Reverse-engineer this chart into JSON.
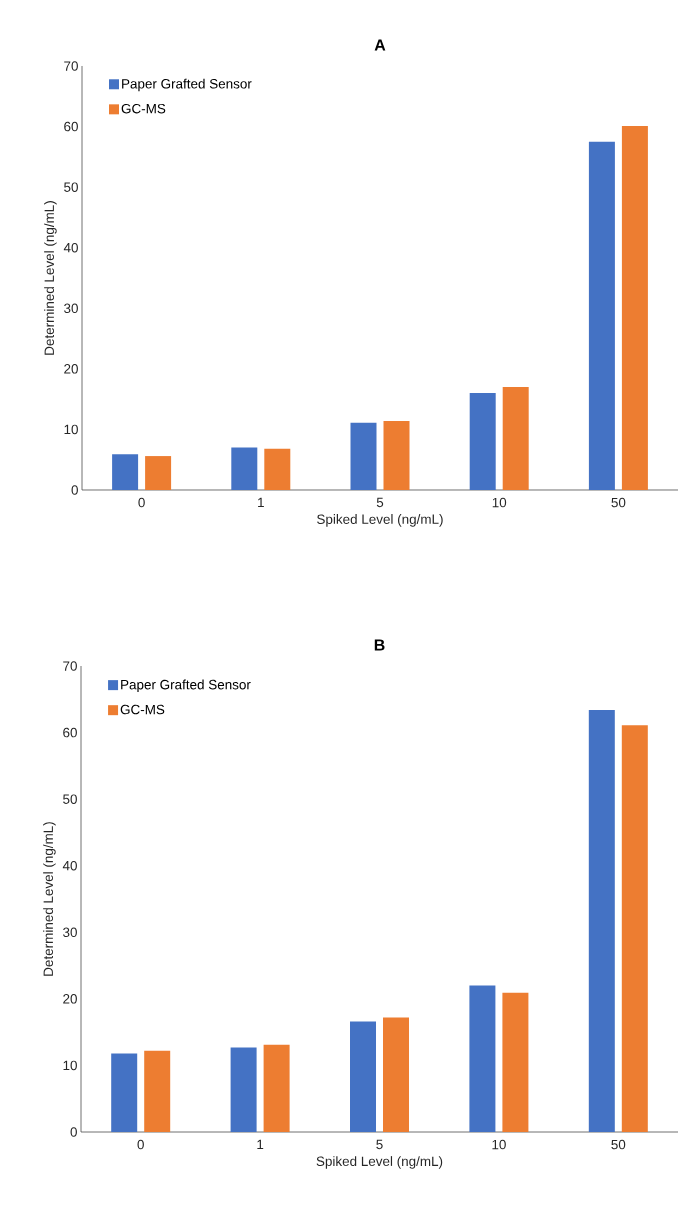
{
  "chart_data": [
    {
      "type": "bar",
      "title": "A",
      "xlabel": "Spiked Level (ng/mL)",
      "ylabel": "Determined Level (ng/mL)",
      "categories": [
        "0",
        "1",
        "5",
        "10",
        "50"
      ],
      "series": [
        {
          "name": "Paper Grafted Sensor",
          "color": "#4472c4",
          "values": [
            5.9,
            7.0,
            11.1,
            16.0,
            57.5
          ]
        },
        {
          "name": "GC-MS",
          "color": "#ed7d31",
          "values": [
            5.6,
            6.8,
            11.4,
            17.0,
            60.1
          ]
        }
      ],
      "ylim": [
        0,
        70
      ],
      "yticks": [
        0,
        10,
        20,
        30,
        40,
        50,
        60,
        70
      ],
      "legend": "top left"
    },
    {
      "type": "bar",
      "title": "B",
      "xlabel": "Spiked Level (ng/mL)",
      "ylabel": "Determined Level (ng/mL)",
      "categories": [
        "0",
        "1",
        "5",
        "10",
        "50"
      ],
      "series": [
        {
          "name": "Paper Grafted Sensor",
          "color": "#4472c4",
          "values": [
            11.8,
            12.7,
            16.6,
            22.0,
            63.4
          ]
        },
        {
          "name": "GC-MS",
          "color": "#ed7d31",
          "values": [
            12.2,
            13.1,
            17.2,
            20.9,
            61.1
          ]
        }
      ],
      "ylim": [
        0,
        70
      ],
      "yticks": [
        0,
        10,
        20,
        30,
        40,
        50,
        60,
        70
      ],
      "legend": "top left"
    }
  ]
}
